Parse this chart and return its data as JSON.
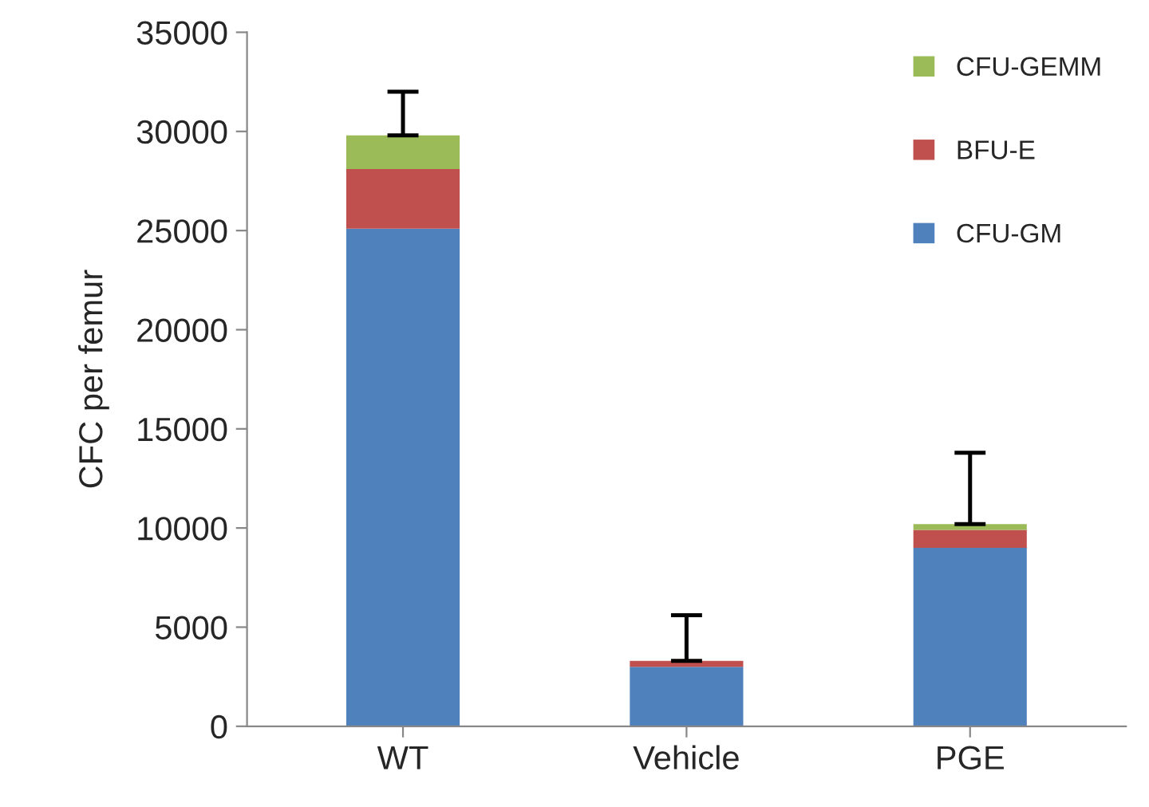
{
  "chart_data": {
    "type": "bar",
    "stacked": true,
    "ylabel": "CFC per femur",
    "categories": [
      "WT",
      "Vehicle",
      "PGE"
    ],
    "series": [
      {
        "name": "CFU-GM",
        "color": "#4f81bd",
        "values": [
          25100,
          3000,
          9000
        ]
      },
      {
        "name": "BFU-E",
        "color": "#c0504d",
        "values": [
          3000,
          300,
          900
        ]
      },
      {
        "name": "CFU-GEMM",
        "color": "#9bbb59",
        "values": [
          1700,
          0,
          300
        ],
        "errors": [
          [
            29800,
            32000
          ],
          [
            3300,
            5600
          ],
          [
            10200,
            13800
          ]
        ]
      }
    ],
    "ylim": [
      0,
      35000
    ],
    "yticks": [
      0,
      5000,
      10000,
      15000,
      20000,
      25000,
      30000,
      35000
    ],
    "grid": false,
    "legend": "top right"
  }
}
